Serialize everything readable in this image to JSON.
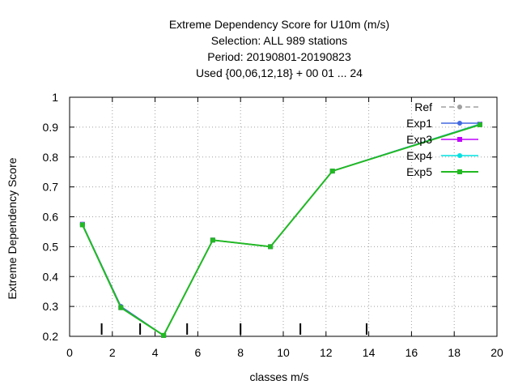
{
  "chart_data": {
    "type": "line",
    "title_lines": [
      "Extreme Dependency Score  for U10m (m/s)",
      "Selection: ALL    989 stations",
      "Period: 20190801-20190823",
      "Used {00,06,12,18} + 00 01 ... 24"
    ],
    "xlabel": "classes m/s",
    "ylabel": "Extreme Dependency Score",
    "xlim": [
      0,
      20
    ],
    "ylim": [
      0.2,
      1.0
    ],
    "x_ticks": [
      "0",
      "2",
      "4",
      "6",
      "8",
      "10",
      "12",
      "14",
      "16",
      "18",
      "20"
    ],
    "y_ticks": [
      "0.2",
      "0.3",
      "0.4",
      "0.5",
      "0.6",
      "0.7",
      "0.8",
      "0.9",
      "1"
    ],
    "grid": true,
    "legend_position": "top-right",
    "class_boundaries": [
      1.5,
      3.3,
      5.5,
      8.0,
      10.8,
      13.9
    ],
    "x": [
      0.6,
      2.4,
      4.4,
      6.7,
      9.4,
      12.3,
      19.2
    ],
    "series": [
      {
        "name": "Ref",
        "color": "#a0a0a0",
        "style": "dashed",
        "marker": "circle",
        "values": [
          0.575,
          0.3,
          0.203,
          0.522,
          0.5,
          0.753,
          0.91
        ]
      },
      {
        "name": "Exp1",
        "color": "#4169e1",
        "style": "solid",
        "marker": "circle",
        "values": [
          0.575,
          0.3,
          0.203,
          0.522,
          0.5,
          0.753,
          0.91
        ]
      },
      {
        "name": "Exp3",
        "color": "#c000ff",
        "style": "solid",
        "marker": "square",
        "values": [
          0.575,
          0.296,
          0.203,
          0.522,
          0.5,
          0.753,
          0.91
        ]
      },
      {
        "name": "Exp4",
        "color": "#00e0e0",
        "style": "solid",
        "marker": "circle",
        "values": [
          0.575,
          0.296,
          0.203,
          0.522,
          0.5,
          0.753,
          0.91
        ]
      },
      {
        "name": "Exp5",
        "color": "#22b922",
        "style": "solid",
        "marker": "square",
        "values": [
          0.573,
          0.296,
          0.203,
          0.522,
          0.5,
          0.753,
          0.908
        ]
      }
    ]
  }
}
